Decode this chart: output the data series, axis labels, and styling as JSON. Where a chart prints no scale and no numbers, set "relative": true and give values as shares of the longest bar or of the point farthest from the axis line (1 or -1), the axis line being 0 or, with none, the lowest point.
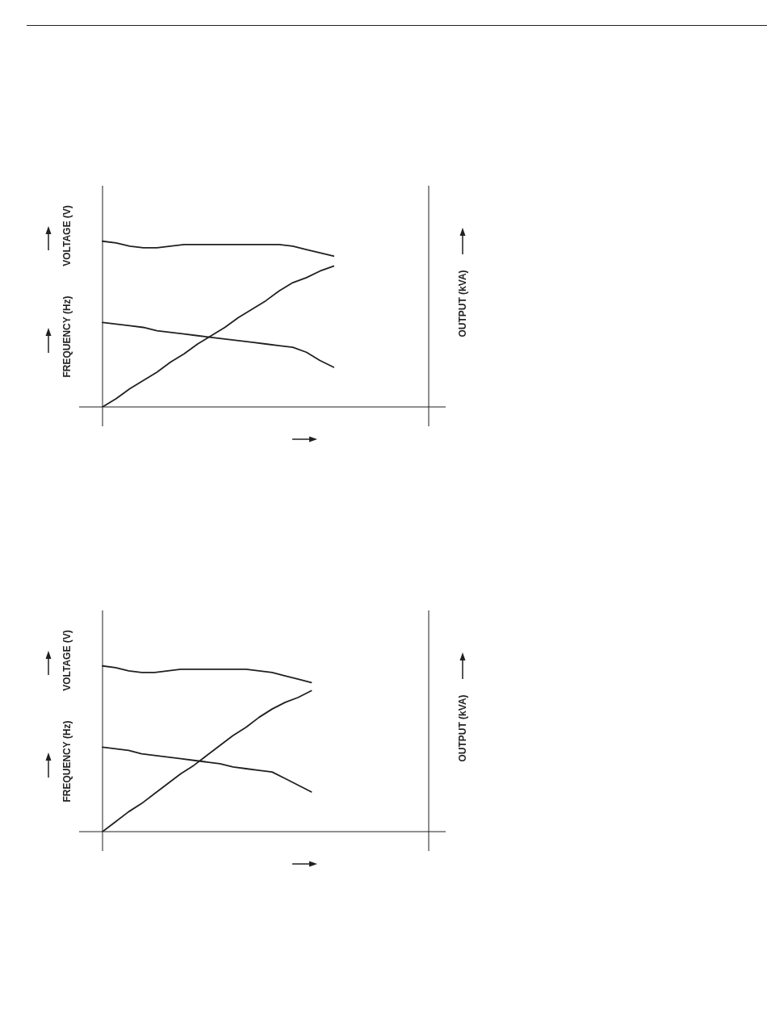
{
  "chart_data": [
    {
      "type": "line",
      "relative": true,
      "legend": false,
      "marker": "none",
      "ylabel": "FREQUENCY (Hz)",
      "annotations": [
        "VOLTAGE (V)"
      ],
      "y2label": "OUTPUT (kVA)",
      "categories": [
        null,
        null,
        null,
        null,
        null,
        null,
        null,
        null,
        null,
        null,
        null,
        null,
        null,
        null,
        null,
        null,
        null,
        null,
        null,
        null,
        null,
        null,
        null,
        null,
        null
      ],
      "series": [
        {
          "color": "#231f20",
          "values": [
            1.0,
            0.99,
            0.97,
            0.96,
            0.96,
            0.97,
            0.98,
            0.98,
            0.98,
            0.98,
            0.98,
            0.98,
            0.98,
            0.98,
            0.97,
            0.95,
            0.93,
            0.91,
            null,
            null,
            null,
            null,
            null,
            null,
            null
          ]
        },
        {
          "color": "#231f20",
          "values": [
            0.51,
            0.5,
            0.49,
            0.48,
            0.46,
            0.45,
            0.44,
            0.43,
            0.42,
            0.41,
            0.4,
            0.39,
            0.38,
            0.37,
            0.36,
            0.33,
            0.28,
            0.24,
            null,
            null,
            null,
            null,
            null,
            null,
            null
          ]
        },
        {
          "color": "#231f20",
          "values": [
            0,
            0.05,
            0.11,
            0.16,
            0.21,
            0.27,
            0.32,
            0.38,
            0.43,
            0.48,
            0.54,
            0.59,
            0.64,
            0.7,
            0.75,
            0.78,
            0.82,
            0.85,
            null,
            null,
            null,
            null,
            null,
            null,
            null
          ]
        }
      ]
    },
    {
      "type": "line",
      "relative": true,
      "legend": false,
      "marker": "none",
      "ylabel": "FREQUENCY (Hz)",
      "annotations": [
        "VOLTAGE (V)"
      ],
      "y2label": "OUTPUT (kVA)",
      "categories": [
        null,
        null,
        null,
        null,
        null,
        null,
        null,
        null,
        null,
        null,
        null,
        null,
        null,
        null,
        null,
        null,
        null,
        null,
        null,
        null,
        null,
        null,
        null,
        null,
        null,
        null
      ],
      "series": [
        {
          "color": "#231f20",
          "values": [
            1.0,
            0.99,
            0.97,
            0.96,
            0.96,
            0.97,
            0.98,
            0.98,
            0.98,
            0.98,
            0.98,
            0.98,
            0.97,
            0.96,
            0.94,
            0.92,
            0.9,
            null,
            null,
            null,
            null,
            null,
            null,
            null,
            null,
            null
          ]
        },
        {
          "color": "#231f20",
          "values": [
            0.51,
            0.5,
            0.49,
            0.47,
            0.46,
            0.45,
            0.44,
            0.43,
            0.42,
            0.41,
            0.39,
            0.38,
            0.37,
            0.36,
            0.32,
            0.28,
            0.24,
            null,
            null,
            null,
            null,
            null,
            null,
            null,
            null,
            null
          ]
        },
        {
          "color": "#231f20",
          "values": [
            0,
            0.06,
            0.12,
            0.17,
            0.23,
            0.29,
            0.35,
            0.4,
            0.46,
            0.52,
            0.58,
            0.63,
            0.69,
            0.74,
            0.78,
            0.81,
            0.85,
            null,
            null,
            null,
            null,
            null,
            null,
            null,
            null,
            null
          ]
        }
      ]
    }
  ]
}
